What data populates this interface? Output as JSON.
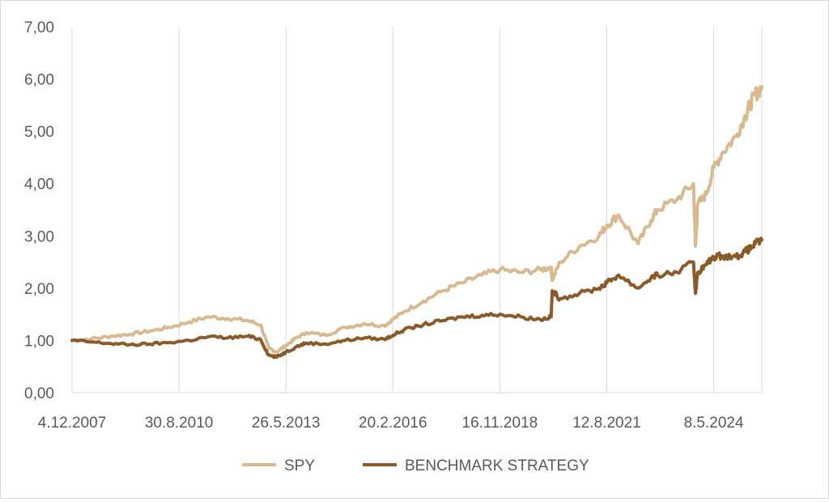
{
  "chart_data": {
    "type": "line",
    "title": "",
    "xlabel": "",
    "ylabel": "",
    "ylim": [
      0,
      7
    ],
    "x_tick_labels": [
      "4.12.2007",
      "30.8.2010",
      "26.5.2013",
      "20.2.2016",
      "16.11.2018",
      "12.8.2021",
      "8.5.2024"
    ],
    "y_tick_labels": [
      "0,00",
      "1,00",
      "2,00",
      "3,00",
      "4,00",
      "5,00",
      "6,00",
      "7,00"
    ],
    "grid": "vertical",
    "legend_position": "bottom",
    "x": [
      "2007-12-04",
      "2008-06-01",
      "2008-12-01",
      "2009-06-01",
      "2009-12-01",
      "2010-06-01",
      "2010-12-01",
      "2011-06-01",
      "2011-12-01",
      "2012-06-01",
      "2012-10-01",
      "2012-12-15",
      "2013-03-01",
      "2013-05-26",
      "2013-09-01",
      "2013-12-01",
      "2014-06-01",
      "2014-12-01",
      "2015-06-01",
      "2015-12-01",
      "2016-02-20",
      "2016-06-01",
      "2016-12-01",
      "2017-06-01",
      "2017-12-01",
      "2018-06-01",
      "2018-11-16",
      "2019-06-01",
      "2019-12-01",
      "2020-03-10",
      "2020-03-20",
      "2020-06-01",
      "2020-12-01",
      "2021-06-01",
      "2021-08-12",
      "2021-12-01",
      "2022-06-01",
      "2022-10-01",
      "2022-12-01",
      "2023-06-01",
      "2023-11-01",
      "2023-11-20",
      "2023-12-10",
      "2024-03-01",
      "2024-05-08",
      "2024-08-01",
      "2024-12-01",
      "2025-03-01",
      "2025-04-10",
      "2025-06-01",
      "2025-08-01"
    ],
    "series": [
      {
        "name": "SPY",
        "color": "#d8b991",
        "values": [
          1.0,
          1.03,
          1.08,
          1.12,
          1.18,
          1.25,
          1.35,
          1.45,
          1.42,
          1.38,
          1.3,
          0.85,
          0.78,
          0.9,
          1.05,
          1.15,
          1.1,
          1.25,
          1.32,
          1.28,
          1.4,
          1.55,
          1.75,
          1.95,
          2.1,
          2.25,
          2.35,
          2.3,
          2.35,
          2.4,
          2.15,
          2.5,
          2.8,
          3.0,
          3.2,
          3.4,
          2.85,
          3.3,
          3.5,
          3.7,
          4.0,
          2.8,
          3.6,
          3.8,
          4.3,
          4.6,
          4.9,
          5.3,
          5.5,
          5.7,
          5.85
        ]
      },
      {
        "name": "BENCHMARK STRATEGY",
        "color": "#8b5a2b",
        "values": [
          1.0,
          0.97,
          0.94,
          0.92,
          0.93,
          0.96,
          1.0,
          1.07,
          1.05,
          1.08,
          1.02,
          0.72,
          0.68,
          0.78,
          0.88,
          0.95,
          0.93,
          1.0,
          1.05,
          1.02,
          1.1,
          1.2,
          1.3,
          1.38,
          1.45,
          1.48,
          1.5,
          1.45,
          1.4,
          1.45,
          1.95,
          1.8,
          1.9,
          2.0,
          2.1,
          2.25,
          2.0,
          2.2,
          2.25,
          2.3,
          2.5,
          1.9,
          2.3,
          2.45,
          2.6,
          2.62,
          2.6,
          2.7,
          2.75,
          2.85,
          2.92
        ]
      }
    ]
  }
}
